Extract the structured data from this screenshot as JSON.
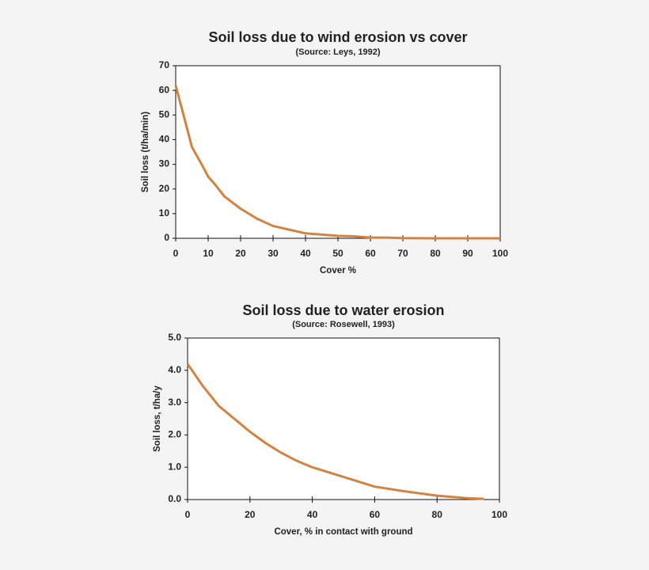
{
  "chart_data": [
    {
      "type": "line",
      "title": "Soil loss due to wind erosion vs cover",
      "subtitle": "(Source: Leys, 1992)",
      "x_label": "Cover %",
      "y_label": "Soil loss (t/ha/min)",
      "x": [
        0,
        2,
        5,
        8,
        10,
        12,
        15,
        18,
        20,
        25,
        30,
        35,
        40,
        45,
        50,
        55,
        60,
        65,
        70,
        80,
        90,
        100
      ],
      "series": [
        {
          "name": "Soil loss",
          "color": "#d4823f",
          "values": [
            62,
            52,
            37,
            30,
            25,
            22,
            17,
            14,
            12,
            8,
            5,
            3.5,
            2,
            1.5,
            1,
            0.8,
            0.3,
            0.3,
            0.1,
            0,
            0,
            0
          ]
        }
      ],
      "xlim": [
        0,
        100
      ],
      "xticks": [
        0,
        10,
        20,
        30,
        40,
        50,
        60,
        70,
        80,
        90,
        100
      ],
      "ylim": [
        0,
        70
      ],
      "yticks": [
        0,
        10,
        20,
        30,
        40,
        50,
        60,
        70
      ]
    },
    {
      "type": "line",
      "title": "Soil loss due to water erosion",
      "subtitle": "(Source: Rosewell, 1993)",
      "x_label": "Cover, % in contact with ground",
      "y_label": "Soil loss, t/ha/y",
      "x": [
        0,
        5,
        10,
        15,
        20,
        25,
        30,
        35,
        40,
        50,
        60,
        70,
        80,
        90,
        95
      ],
      "series": [
        {
          "name": "Soil loss",
          "color": "#d4823f",
          "values": [
            4.2,
            3.5,
            2.9,
            2.5,
            2.1,
            1.75,
            1.45,
            1.2,
            1.0,
            0.7,
            0.4,
            0.25,
            0.12,
            0.04,
            0.02
          ]
        }
      ],
      "xlim": [
        0,
        100
      ],
      "xticks": [
        0,
        20,
        40,
        60,
        80,
        100
      ],
      "ylim": [
        0,
        5
      ],
      "yticks": [
        {
          "value": 0,
          "label": "0.0"
        },
        {
          "value": 1,
          "label": "1.0"
        },
        {
          "value": 2,
          "label": "2.0"
        },
        {
          "value": 3,
          "label": "3.0"
        },
        {
          "value": 4,
          "label": "4.0"
        },
        {
          "value": 5,
          "label": "5.0"
        }
      ]
    }
  ]
}
